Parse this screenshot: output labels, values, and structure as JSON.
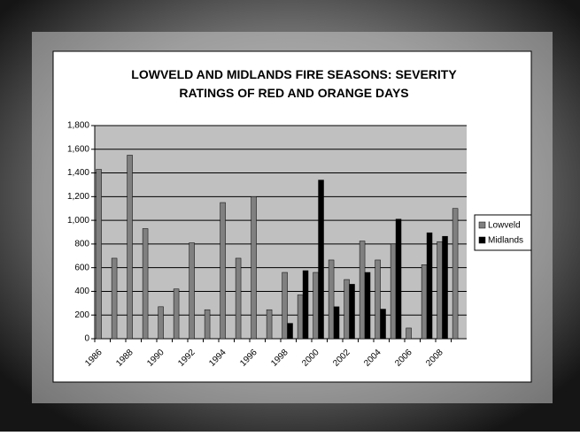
{
  "chart_data": {
    "type": "bar",
    "title": "LOWVELD AND MIDLANDS FIRE SEASONS: SEVERITY RATINGS OF RED AND ORANGE DAYS",
    "categories": [
      "1986",
      null,
      "1988",
      null,
      "1990",
      null,
      "1992",
      null,
      "1994",
      null,
      "1996",
      null,
      "1998",
      null,
      "2000",
      null,
      "2002",
      null,
      "2004",
      null,
      "2006",
      null,
      "2008",
      null
    ],
    "series": [
      {
        "name": "Lowveld",
        "color": "#808080",
        "values": [
          1430,
          680,
          1550,
          930,
          270,
          420,
          810,
          245,
          1150,
          680,
          1200,
          245,
          560,
          370,
          560,
          665,
          500,
          825,
          665,
          800,
          90,
          625,
          820,
          1100
        ]
      },
      {
        "name": "Midlands",
        "color": "#000000",
        "values": [
          null,
          null,
          null,
          null,
          null,
          null,
          null,
          null,
          null,
          null,
          null,
          null,
          130,
          575,
          1340,
          270,
          460,
          560,
          250,
          1010,
          null,
          895,
          865,
          null
        ]
      }
    ],
    "ylim": [
      0,
      1800
    ],
    "yticks": [
      0,
      200,
      400,
      600,
      800,
      {
        "value": 1000,
        "label": "1,000"
      },
      {
        "value": 1200,
        "label": "1,200"
      },
      {
        "value": 1400,
        "label": "1,400"
      },
      {
        "value": 1600,
        "label": "1,600"
      },
      {
        "value": 1800,
        "label": "1,800"
      }
    ],
    "grid": true,
    "legend": "right"
  }
}
